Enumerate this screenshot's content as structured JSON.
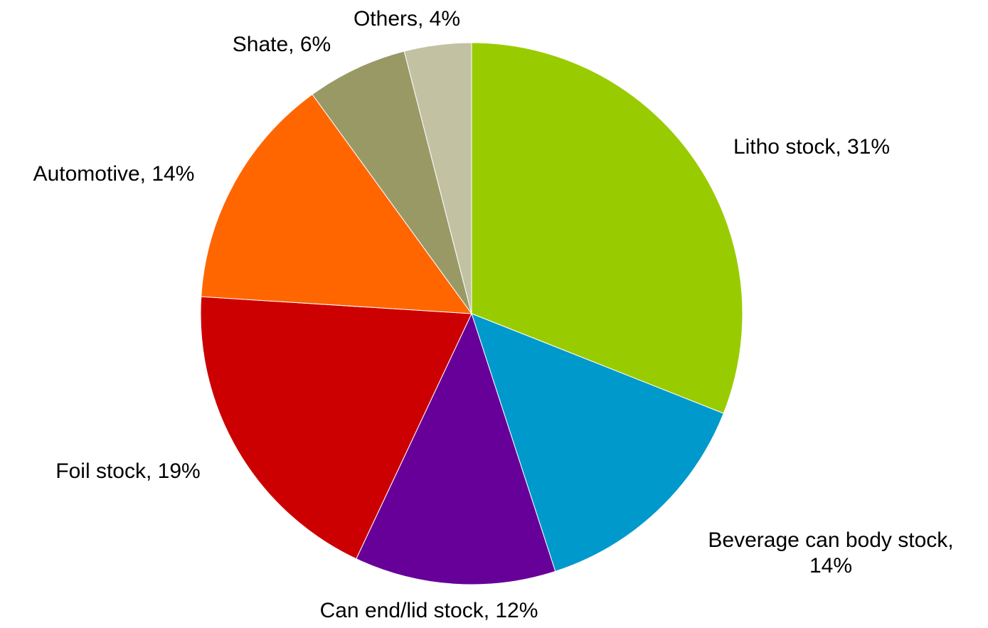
{
  "chart_data": {
    "type": "pie",
    "title": "",
    "slices": [
      {
        "name": "Litho stock",
        "value": 31,
        "color": "#99CC00",
        "label": [
          "Litho stock, 31%"
        ]
      },
      {
        "name": "Beverage can body stock",
        "value": 14,
        "color": "#0099CC",
        "label": [
          "Beverage can body stock,",
          "14%"
        ]
      },
      {
        "name": "Can end/lid stock",
        "value": 12,
        "color": "#660099",
        "label": [
          "Can end/lid stock, 12%"
        ]
      },
      {
        "name": "Foil stock",
        "value": 19,
        "color": "#CC0000",
        "label": [
          "Foil stock, 19%"
        ]
      },
      {
        "name": "Automotive",
        "value": 14,
        "color": "#FF6600",
        "label": [
          "Automotive, 14%"
        ]
      },
      {
        "name": "Shate",
        "value": 6,
        "color": "#999966",
        "label": [
          "Shate, 6%"
        ]
      },
      {
        "name": "Others",
        "value": 4,
        "color": "#C2C2A3",
        "label": [
          "Others, 4%"
        ]
      }
    ],
    "start": "12 o'clock",
    "direction": "clockwise",
    "legend": "none"
  }
}
